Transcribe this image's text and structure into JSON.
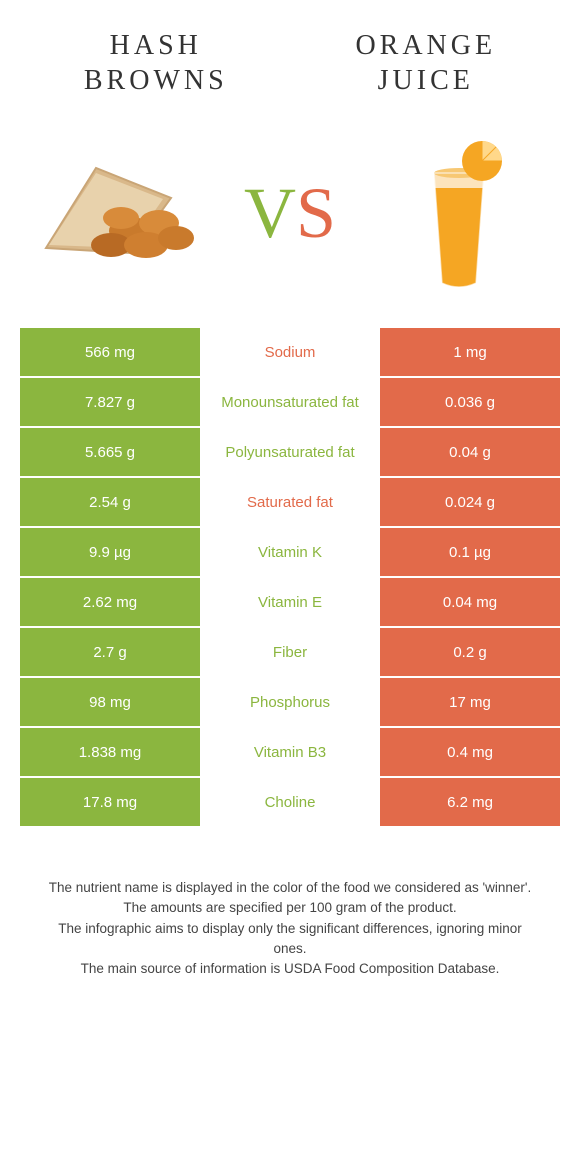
{
  "colors": {
    "left": "#8bb63f",
    "right": "#e26a4a",
    "bg": "#ffffff",
    "text": "#333333"
  },
  "header": {
    "left_title_l1": "HASH",
    "left_title_l2": "BROWNS",
    "right_title_l1": "ORANGE",
    "right_title_l2": "JUICE",
    "vs_v": "V",
    "vs_s": "S"
  },
  "rows": [
    {
      "left": "566 mg",
      "label": "Sodium",
      "right": "1 mg",
      "winner": "right"
    },
    {
      "left": "7.827 g",
      "label": "Monounsaturated fat",
      "right": "0.036 g",
      "winner": "left"
    },
    {
      "left": "5.665 g",
      "label": "Polyunsaturated fat",
      "right": "0.04 g",
      "winner": "left"
    },
    {
      "left": "2.54 g",
      "label": "Saturated fat",
      "right": "0.024 g",
      "winner": "right"
    },
    {
      "left": "9.9 µg",
      "label": "Vitamin K",
      "right": "0.1 µg",
      "winner": "left"
    },
    {
      "left": "2.62 mg",
      "label": "Vitamin E",
      "right": "0.04 mg",
      "winner": "left"
    },
    {
      "left": "2.7 g",
      "label": "Fiber",
      "right": "0.2 g",
      "winner": "left"
    },
    {
      "left": "98 mg",
      "label": "Phosphorus",
      "right": "17 mg",
      "winner": "left"
    },
    {
      "left": "1.838 mg",
      "label": "Vitamin B3",
      "right": "0.4 mg",
      "winner": "left"
    },
    {
      "left": "17.8 mg",
      "label": "Choline",
      "right": "6.2 mg",
      "winner": "left"
    }
  ],
  "footer": {
    "l1": "The nutrient name is displayed in the color of the food we considered as 'winner'.",
    "l2": "The amounts are specified per 100 gram of the product.",
    "l3": "The infographic aims to display only the significant differences, ignoring minor ones.",
    "l4": "The main source of information is USDA Food Composition Database."
  }
}
